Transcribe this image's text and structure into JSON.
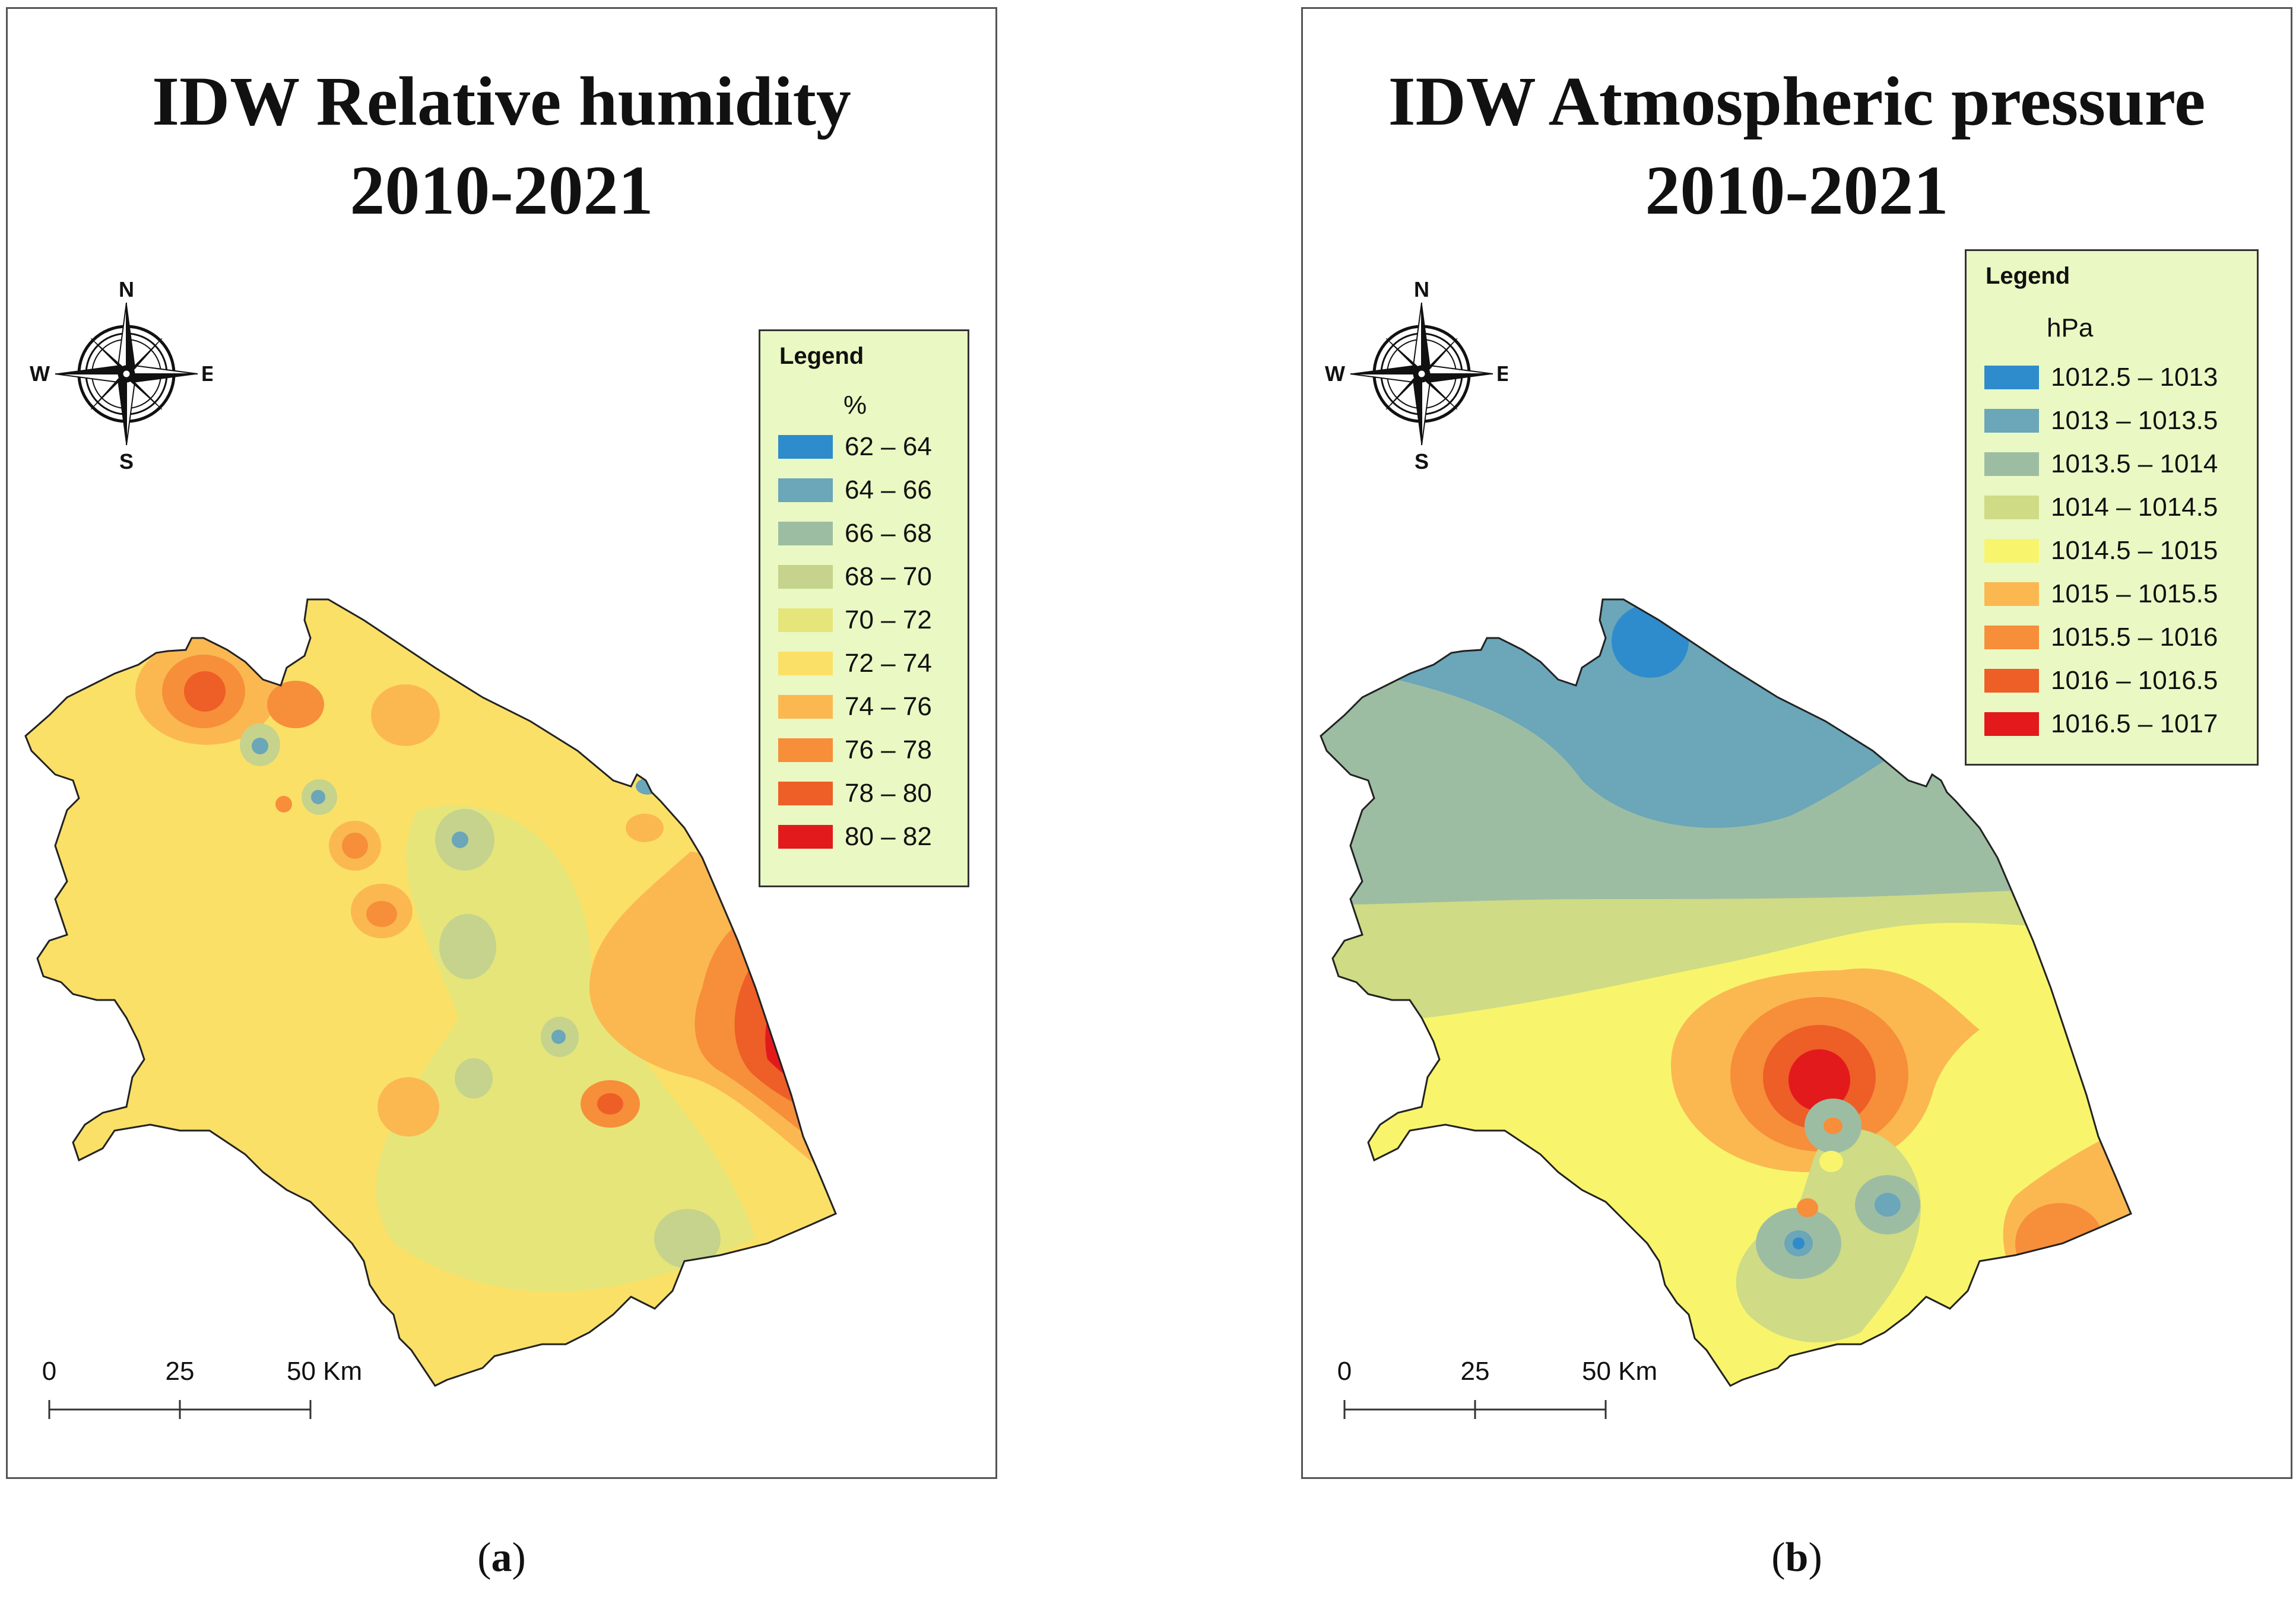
{
  "panels": [
    {
      "id": "a",
      "title_line1": "IDW Relative humidity",
      "title_line2": "2010-2021",
      "legend_title": "Legend",
      "unit": "%",
      "legend_classes": [
        {
          "label": "62 – 64",
          "color": "#2e8ccd"
        },
        {
          "label": "64 – 66",
          "color": "#6ba6b9"
        },
        {
          "label": "66 – 68",
          "color": "#9dbda3"
        },
        {
          "label": "68 – 70",
          "color": "#c5d38c"
        },
        {
          "label": "70 – 72",
          "color": "#e6e57a"
        },
        {
          "label": "72 – 74",
          "color": "#fbe067"
        },
        {
          "label": "74 – 76",
          "color": "#fbb851"
        },
        {
          "label": "76 – 78",
          "color": "#f78e3a"
        },
        {
          "label": "78 – 80",
          "color": "#ee5e27"
        },
        {
          "label": "80 – 82",
          "color": "#e31a1c"
        }
      ],
      "compass": {
        "n": "N",
        "s": "S",
        "e": "E",
        "w": "W"
      },
      "scale_labels": [
        "0",
        "25",
        "50 Km"
      ],
      "caption_letter": "a"
    },
    {
      "id": "b",
      "title_line1": "IDW Atmospheric pressure",
      "title_line2": "2010-2021",
      "legend_title": "Legend",
      "unit": "hPa",
      "legend_classes": [
        {
          "label": "1012.5 – 1013",
          "color": "#2e8ccd"
        },
        {
          "label": "1013 – 1013.5",
          "color": "#6ba6b9"
        },
        {
          "label": "1013.5 – 1014",
          "color": "#9dbda3"
        },
        {
          "label": "1014 – 1014.5",
          "color": "#cfdb85"
        },
        {
          "label": "1014.5 – 1015",
          "color": "#f8f56c"
        },
        {
          "label": "1015 – 1015.5",
          "color": "#fbb851"
        },
        {
          "label": "1015.5 – 1016",
          "color": "#f78e3a"
        },
        {
          "label": "1016 – 1016.5",
          "color": "#ee5e27"
        },
        {
          "label": "1016.5 – 1017",
          "color": "#e31a1c"
        }
      ],
      "compass": {
        "n": "N",
        "s": "S",
        "e": "E",
        "w": "W"
      },
      "scale_labels": [
        "0",
        "25",
        "50 Km"
      ],
      "caption_letter": "b"
    }
  ]
}
